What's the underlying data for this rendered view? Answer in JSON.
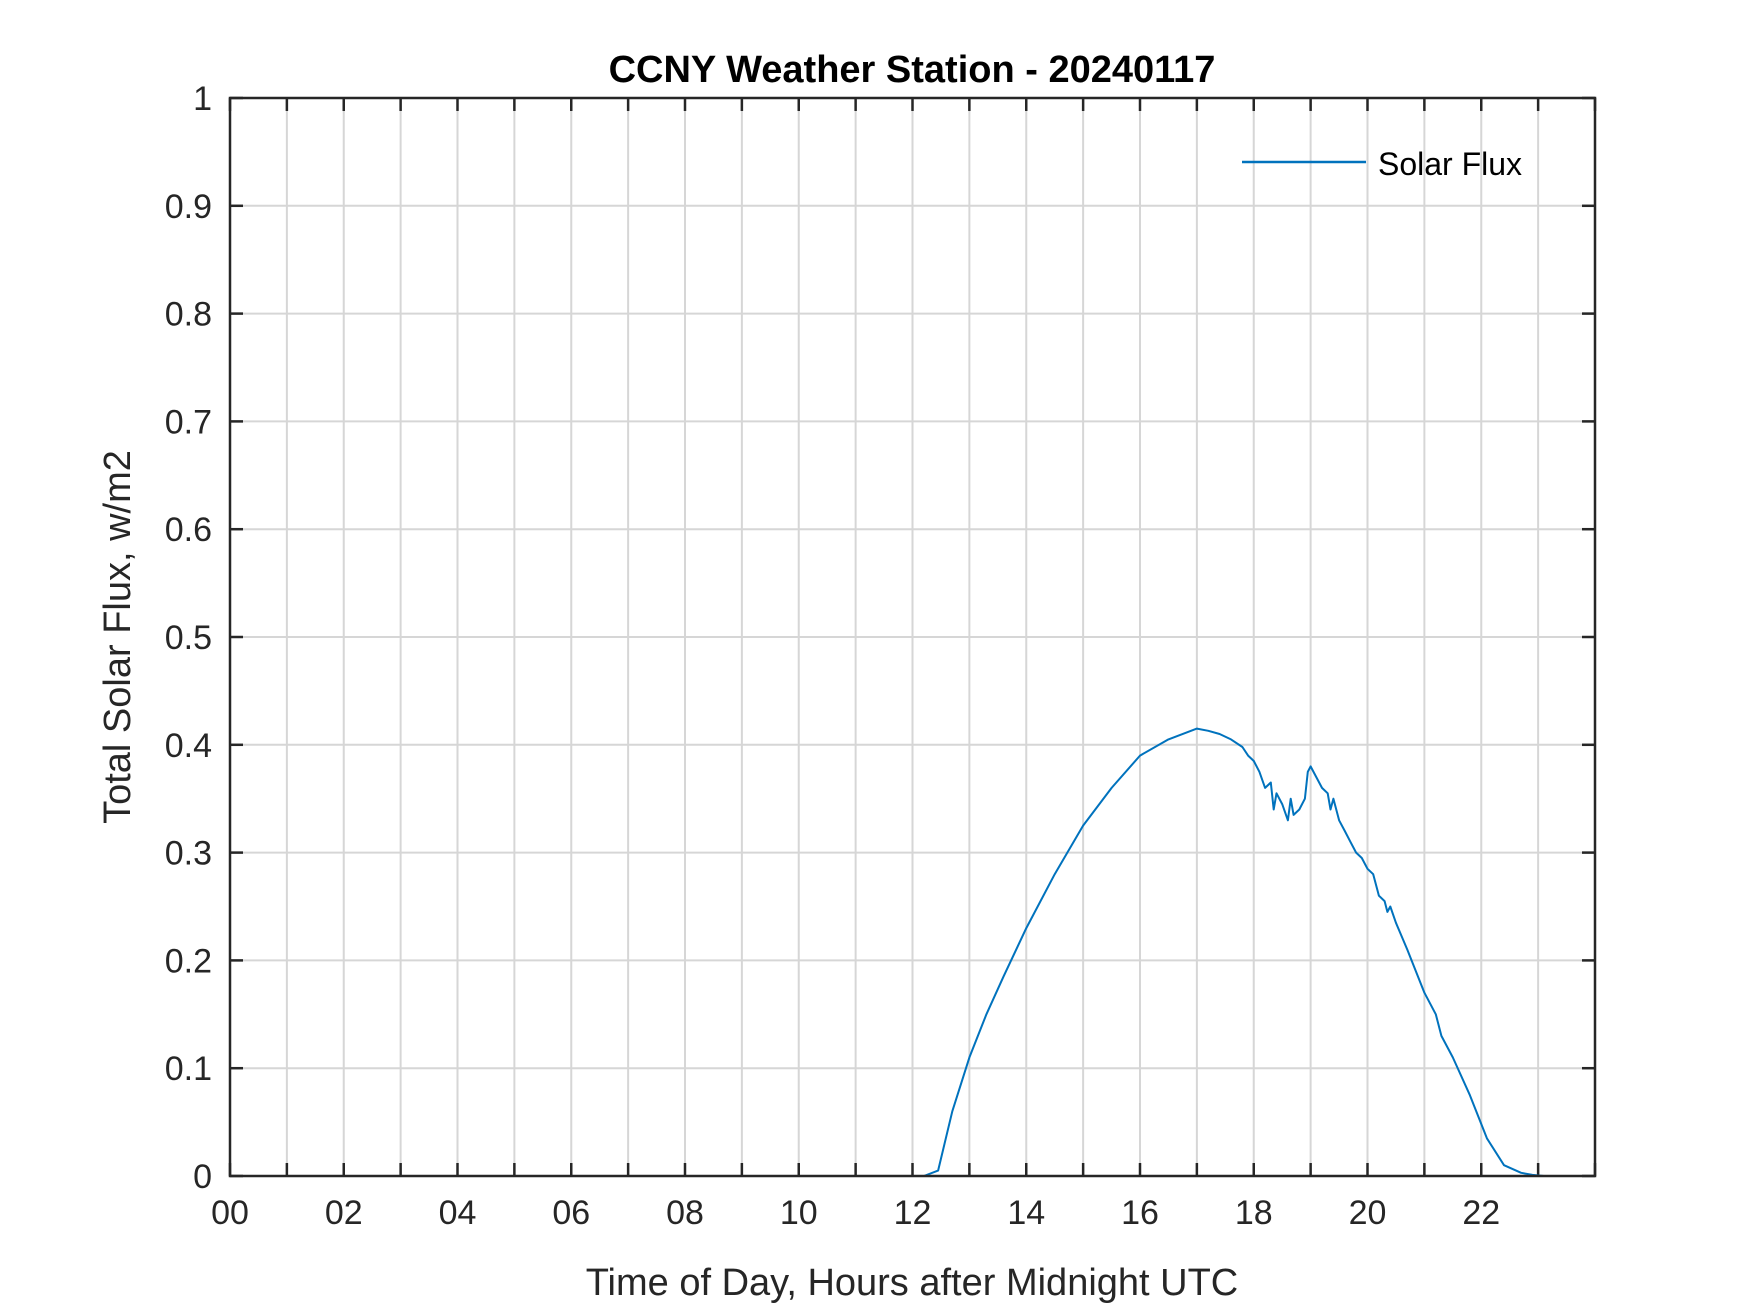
{
  "chart_data": {
    "type": "line",
    "title": "CCNY Weather Station - 20240117",
    "xlabel": "Time of Day, Hours after Midnight UTC",
    "ylabel": "Total Solar Flux, w/m2",
    "xlim": [
      0,
      24
    ],
    "ylim": [
      0,
      1
    ],
    "xticks": [
      0,
      2,
      4,
      6,
      8,
      10,
      12,
      14,
      16,
      18,
      20,
      22
    ],
    "xtick_labels": [
      "00",
      "02",
      "04",
      "06",
      "08",
      "10",
      "12",
      "14",
      "16",
      "18",
      "20",
      "22"
    ],
    "yticks": [
      0,
      0.1,
      0.2,
      0.3,
      0.4,
      0.5,
      0.6,
      0.7,
      0.8,
      0.9,
      1
    ],
    "ytick_labels": [
      "0",
      "0.1",
      "0.2",
      "0.3",
      "0.4",
      "0.5",
      "0.6",
      "0.7",
      "0.8",
      "0.9",
      "1"
    ],
    "grid": true,
    "legend_position": "top-right",
    "series": [
      {
        "name": "Solar Flux",
        "color": "#0072BD",
        "x": [
          0,
          12.0,
          12.2,
          12.45,
          12.7,
          13.0,
          13.3,
          13.6,
          14.0,
          14.5,
          15.0,
          15.5,
          16.0,
          16.5,
          17.0,
          17.2,
          17.4,
          17.6,
          17.8,
          17.9,
          18.0,
          18.1,
          18.2,
          18.3,
          18.35,
          18.4,
          18.5,
          18.6,
          18.65,
          18.7,
          18.8,
          18.9,
          18.95,
          19.0,
          19.1,
          19.2,
          19.3,
          19.35,
          19.4,
          19.5,
          19.6,
          19.7,
          19.8,
          19.9,
          20.0,
          20.1,
          20.2,
          20.3,
          20.35,
          20.4,
          20.5,
          20.7,
          21.0,
          21.2,
          21.3,
          21.5,
          21.8,
          22.1,
          22.4,
          22.7,
          22.9,
          23.1,
          23.3,
          24.0
        ],
        "y": [
          0,
          0,
          0.0,
          0.005,
          0.06,
          0.11,
          0.15,
          0.185,
          0.23,
          0.28,
          0.325,
          0.36,
          0.39,
          0.405,
          0.415,
          0.413,
          0.41,
          0.405,
          0.398,
          0.39,
          0.385,
          0.375,
          0.36,
          0.365,
          0.34,
          0.355,
          0.345,
          0.33,
          0.35,
          0.335,
          0.34,
          0.35,
          0.375,
          0.38,
          0.37,
          0.36,
          0.355,
          0.34,
          0.35,
          0.33,
          0.32,
          0.31,
          0.3,
          0.295,
          0.285,
          0.28,
          0.26,
          0.255,
          0.245,
          0.25,
          0.235,
          0.21,
          0.17,
          0.15,
          0.13,
          0.11,
          0.075,
          0.035,
          0.01,
          0.003,
          0.001,
          0,
          0,
          0
        ]
      }
    ]
  }
}
